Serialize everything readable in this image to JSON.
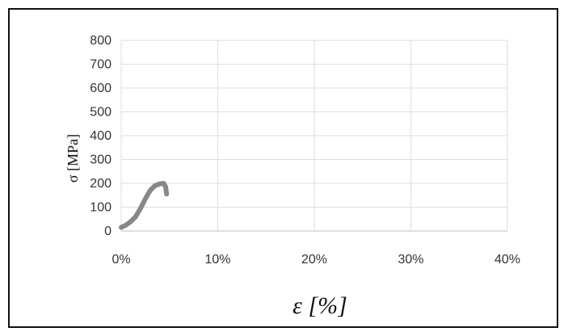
{
  "chart_data": {
    "type": "line",
    "title": "",
    "xlabel": "ε [%]",
    "ylabel": "σ [MPa]",
    "xlim": [
      0,
      40
    ],
    "ylim": [
      0,
      800
    ],
    "x_ticks": [
      0,
      10,
      20,
      30,
      40
    ],
    "x_tick_labels": [
      "0%",
      "10%",
      "20%",
      "30%",
      "40%"
    ],
    "y_ticks": [
      0,
      100,
      200,
      300,
      400,
      500,
      600,
      700,
      800
    ],
    "y_tick_labels": [
      "0",
      "100",
      "200",
      "300",
      "400",
      "500",
      "600",
      "700",
      "800"
    ],
    "grid": true,
    "legend": "none",
    "series": [
      {
        "color": "#888888",
        "x": [
          0.0,
          0.5,
          1.0,
          1.5,
          2.0,
          2.5,
          3.0,
          3.5,
          4.0,
          4.4,
          4.6,
          4.7
        ],
        "y": [
          15,
          25,
          40,
          60,
          95,
          135,
          170,
          190,
          198,
          200,
          185,
          155
        ]
      }
    ]
  }
}
